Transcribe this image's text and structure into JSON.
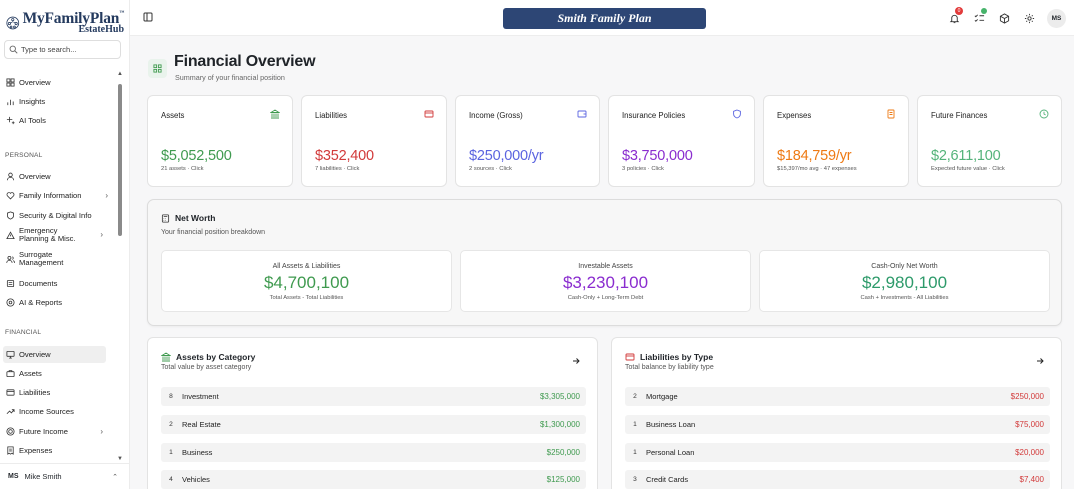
{
  "brand": {
    "name": "MyFamilyPlan",
    "tm": "™",
    "sub": "EstateHub"
  },
  "search": {
    "placeholder": "Type to search..."
  },
  "nav_top": [
    {
      "label": "Overview",
      "icon": "layout-icon"
    },
    {
      "label": "Insights",
      "icon": "bar-chart-icon"
    },
    {
      "label": "AI Tools",
      "icon": "sparkles-icon"
    }
  ],
  "sections": {
    "personal": "PERSONAL",
    "financial": "FINANCIAL"
  },
  "nav_personal": [
    {
      "label": "Overview"
    },
    {
      "label": "Family Information"
    },
    {
      "label": "Security & Digital Info"
    },
    {
      "label_line1": "Emergency",
      "label_line2": "Planning & Misc."
    },
    {
      "label_line1": "Surrogate",
      "label_line2": "Management"
    },
    {
      "label": "Documents"
    },
    {
      "label": "AI & Reports"
    }
  ],
  "nav_financial": [
    {
      "label": "Overview"
    },
    {
      "label": "Assets"
    },
    {
      "label": "Liabilities"
    },
    {
      "label": "Income Sources"
    },
    {
      "label": "Future Income"
    },
    {
      "label": "Expenses"
    }
  ],
  "user": {
    "initials": "MS",
    "name": "Mike Smith"
  },
  "topbar": {
    "plan_name": "Smith Family Plan",
    "notification_count": "0",
    "avatar": "MS"
  },
  "page": {
    "title": "Financial Overview",
    "subtitle": "Summary of your financial position"
  },
  "stats": [
    {
      "label": "Assets",
      "value": "$5,052,500",
      "note": "21 assets · Click",
      "color": "#3f9a4f"
    },
    {
      "label": "Liabilities",
      "value": "$352,400",
      "note": "7 liabilities · Click",
      "color": "#d23a3a"
    },
    {
      "label": "Income (Gross)",
      "value": "$250,000/yr",
      "note": "2 sources · Click",
      "color": "#5b64e0"
    },
    {
      "label": "Insurance Policies",
      "value": "$3,750,000",
      "note": "3 policies · Click",
      "color": "#8a2ccf"
    },
    {
      "label": "Expenses",
      "value": "$184,759/yr",
      "note": "$15,397/mo avg · 47 expenses",
      "color": "#ee7a14"
    },
    {
      "label": "Future Finances",
      "value": "$2,611,100",
      "note": "Expected future value · Click",
      "color": "#54b37a"
    }
  ],
  "networth": {
    "title": "Net Worth",
    "subtitle": "Your financial position breakdown",
    "boxes": [
      {
        "label": "All Assets & Liabilities",
        "value": "$4,700,100",
        "note": "Total Assets - Total Liabilities"
      },
      {
        "label": "Investable Assets",
        "value": "$3,230,100",
        "note": "Cash-Only + Long-Term Debt"
      },
      {
        "label": "Cash-Only Net Worth",
        "value": "$2,980,100",
        "note": "Cash + Investments - All Liabilities"
      }
    ]
  },
  "assets_by_category": {
    "title": "Assets by Category",
    "subtitle": "Total value by asset category",
    "rows": [
      {
        "count": "8",
        "name": "Investment",
        "amount": "$3,305,000"
      },
      {
        "count": "2",
        "name": "Real Estate",
        "amount": "$1,300,000"
      },
      {
        "count": "1",
        "name": "Business",
        "amount": "$250,000"
      },
      {
        "count": "4",
        "name": "Vehicles",
        "amount": "$125,000"
      }
    ]
  },
  "liabilities_by_type": {
    "title": "Liabilities by Type",
    "subtitle": "Total balance by liability type",
    "rows": [
      {
        "count": "2",
        "name": "Mortgage",
        "amount": "$250,000"
      },
      {
        "count": "1",
        "name": "Business Loan",
        "amount": "$75,000"
      },
      {
        "count": "1",
        "name": "Personal Loan",
        "amount": "$20,000"
      },
      {
        "count": "3",
        "name": "Credit Cards",
        "amount": "$7,400"
      }
    ]
  }
}
